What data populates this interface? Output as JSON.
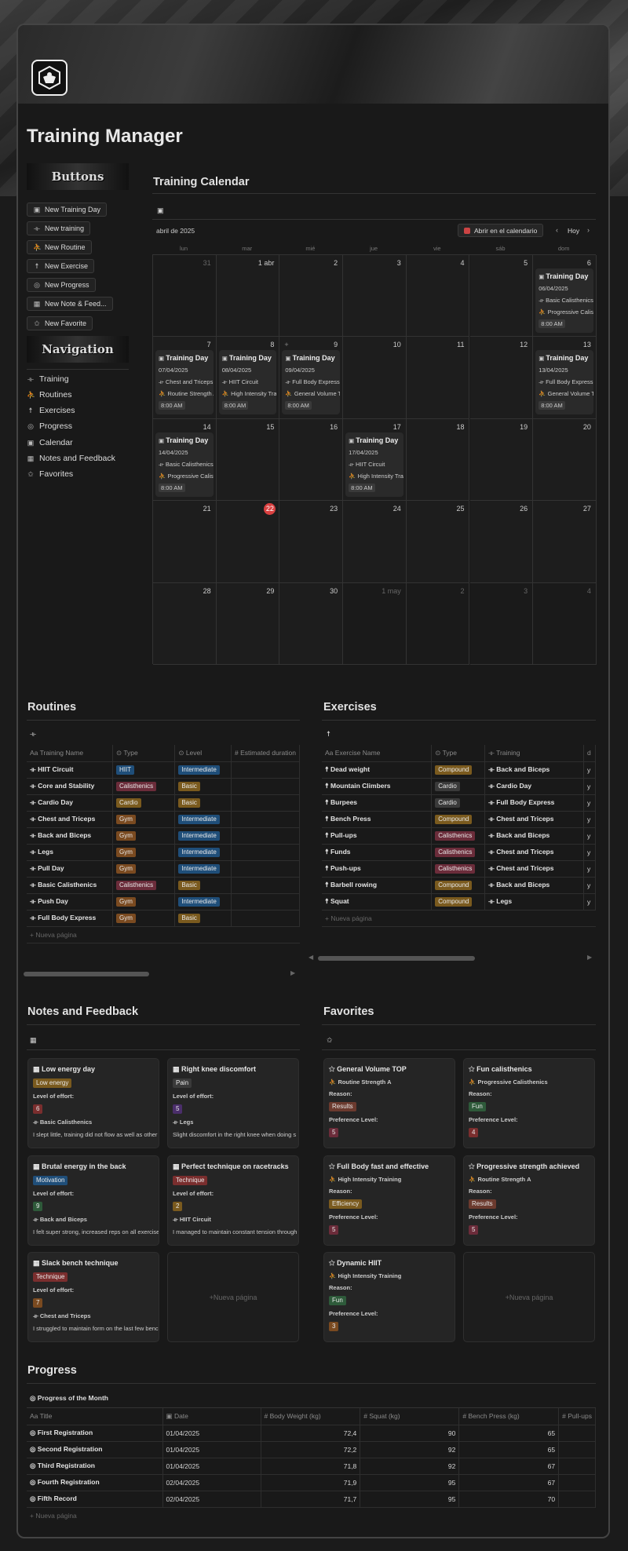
{
  "app": {
    "title": "Training Manager"
  },
  "buttons_banner": "Buttons",
  "nav_banner": "Navigation",
  "buttons": [
    {
      "label": "New Training Day",
      "icon": "calendar-icon"
    },
    {
      "label": "New training",
      "icon": "dumbbell-icon"
    },
    {
      "label": "New Routine",
      "icon": "runner-icon"
    },
    {
      "label": "New Exercise",
      "icon": "person-icon"
    },
    {
      "label": "New Progress",
      "icon": "target-icon"
    },
    {
      "label": "New Note & Feed...",
      "icon": "note-icon"
    },
    {
      "label": "New Favorite",
      "icon": "star-icon"
    }
  ],
  "nav": [
    {
      "label": "Training",
      "icon": "dumbbell-icon"
    },
    {
      "label": "Routines",
      "icon": "runner-icon"
    },
    {
      "label": "Exercises",
      "icon": "person-icon"
    },
    {
      "label": "Progress",
      "icon": "target-icon"
    },
    {
      "label": "Calendar",
      "icon": "calendar-icon"
    },
    {
      "label": "Notes and Feedback",
      "icon": "note-icon"
    },
    {
      "label": "Favorites",
      "icon": "star-icon"
    }
  ],
  "calendar": {
    "title": "Training Calendar",
    "month": "abril de 2025",
    "open_label": "Abrir en el calendario",
    "today_label": "Hoy",
    "weekdays": [
      "lun",
      "mar",
      "mié",
      "jue",
      "vie",
      "sáb",
      "dom"
    ],
    "days": [
      "31",
      "1 abr",
      "2",
      "3",
      "4",
      "5",
      "6",
      "7",
      "8",
      "9",
      "10",
      "11",
      "12",
      "13",
      "14",
      "15",
      "16",
      "17",
      "18",
      "19",
      "20",
      "21",
      "22",
      "23",
      "24",
      "25",
      "26",
      "27",
      "28",
      "29",
      "30",
      "1 may",
      "2",
      "3",
      "4"
    ],
    "events": [
      {
        "day_index": 6,
        "title": "Training Day",
        "date": "06/04/2025",
        "line1": "Basic Calisthenics",
        "line2": "Progressive Calisthenics",
        "time": "8:00 AM"
      },
      {
        "day_index": 7,
        "title": "Training Day",
        "date": "07/04/2025",
        "line1": "Chest and Triceps",
        "line2": "Routine Strength A",
        "time": "8:00 AM"
      },
      {
        "day_index": 8,
        "title": "Training Day",
        "date": "08/04/2025",
        "line1": "HIIT Circuit",
        "line2": "High Intensity Training",
        "time": "8:00 AM"
      },
      {
        "day_index": 9,
        "title": "Training Day",
        "date": "09/04/2025",
        "line1": "Full Body Express",
        "line2": "General Volume TOP",
        "time": "8:00 AM"
      },
      {
        "day_index": 13,
        "title": "Training Day",
        "date": "13/04/2025",
        "line1": "Full Body Express",
        "line2": "General Volume TOP",
        "time": "8:00 AM"
      },
      {
        "day_index": 14,
        "title": "Training Day",
        "date": "14/04/2025",
        "line1": "Basic Calisthenics",
        "line2": "Progressive Calisthenics",
        "time": "8:00 AM"
      },
      {
        "day_index": 17,
        "title": "Training Day",
        "date": "17/04/2025",
        "line1": "HIIT Circuit",
        "line2": "High Intensity Training",
        "time": "8:00 AM"
      }
    ]
  },
  "routines": {
    "title": "Routines",
    "columns": [
      "Training Name",
      "Type",
      "Level",
      "Estimated duration"
    ],
    "rows": [
      [
        "HIIT Circuit",
        "HIIT",
        "Intermediate"
      ],
      [
        "Core and Stability",
        "Calisthenics",
        "Basic"
      ],
      [
        "Cardio Day",
        "Cardio",
        "Basic"
      ],
      [
        "Chest and Triceps",
        "Gym",
        "Intermediate"
      ],
      [
        "Back and Biceps",
        "Gym",
        "Intermediate"
      ],
      [
        "Legs",
        "Gym",
        "Intermediate"
      ],
      [
        "Pull Day",
        "Gym",
        "Intermediate"
      ],
      [
        "Basic Calisthenics",
        "Calisthenics",
        "Basic"
      ],
      [
        "Push Day",
        "Gym",
        "Intermediate"
      ],
      [
        "Full Body Express",
        "Gym",
        "Basic"
      ]
    ],
    "new_page": "Nueva página"
  },
  "exercises": {
    "title": "Exercises",
    "columns": [
      "Exercise Name",
      "Type",
      "Training",
      "d"
    ],
    "rows": [
      [
        "Dead weight",
        "Compound",
        "Back and Biceps",
        "y"
      ],
      [
        "Mountain Climbers",
        "Cardio",
        "Cardio Day",
        "y"
      ],
      [
        "Burpees",
        "Cardio",
        "Full Body Express",
        "y"
      ],
      [
        "Bench Press",
        "Compound",
        "Chest and Triceps",
        "y"
      ],
      [
        "Pull-ups",
        "Calisthenics",
        "Back and Biceps",
        "y"
      ],
      [
        "Funds",
        "Calisthenics",
        "Chest and Triceps",
        "y"
      ],
      [
        "Push-ups",
        "Calisthenics",
        "Chest and Triceps",
        "y"
      ],
      [
        "Barbell rowing",
        "Compound",
        "Back and Biceps",
        "y"
      ],
      [
        "Squat",
        "Compound",
        "Legs",
        "y"
      ]
    ],
    "new_page": "Nueva página"
  },
  "tag_colors": {
    "HIIT": "#1f4e79",
    "Intermediate": "#1f4e79",
    "Calisthenics": "#6b2c3a",
    "Basic": "#7a5a1e",
    "Cardio": "#7a5a1e",
    "Gym": "#7a4a20",
    "Compound": "#7a5a1e",
    "Cardio_ex": "#3a3a3a"
  },
  "notes": {
    "title": "Notes and Feedback",
    "effort_label": "Level of effort:",
    "cards": [
      {
        "title": "Low energy day",
        "tag": "Low energy",
        "tag_color": "#7a5a1e",
        "effort": "6",
        "effort_color": "#7a2e2e",
        "routine": "Basic Calisthenics",
        "text": "I slept little, training did not flow as well as other"
      },
      {
        "title": "Right knee discomfort",
        "tag": "Pain",
        "tag_color": "#3a3a3a",
        "effort": "5",
        "effort_color": "#4a2e6a",
        "routine": "Legs",
        "text": "Slight discomfort in the right knee when doing s"
      },
      {
        "title": "Brutal energy in the back",
        "tag": "Motivation",
        "tag_color": "#1f4e79",
        "effort": "9",
        "effort_color": "#2e5a3a",
        "routine": "Back and Biceps",
        "text": "I felt super strong, increased reps on all exercises"
      },
      {
        "title": "Perfect technique on racetracks",
        "tag": "Technique",
        "tag_color": "#7a2e2e",
        "effort": "2",
        "effort_color": "#7a5a1e",
        "routine": "HIIT Circuit",
        "text": "I managed to maintain constant tension through"
      },
      {
        "title": "Slack bench technique",
        "tag": "Technique",
        "tag_color": "#7a2e2e",
        "effort": "7",
        "effort_color": "#7a4a20",
        "routine": "Chest and Triceps",
        "text": "I struggled to maintain form on the last few benc"
      }
    ],
    "new_page": "Nueva página"
  },
  "favorites": {
    "title": "Favorites",
    "reason_label": "Reason:",
    "pref_label": "Preference Level:",
    "cards": [
      {
        "title": "General Volume TOP",
        "routine": "Routine Strength A",
        "reason": "Results",
        "reason_color": "#6b3a2e",
        "pref": "5",
        "pref_color": "#6b2c3a"
      },
      {
        "title": "Fun calisthenics",
        "routine": "Progressive Calisthenics",
        "reason": "Fun",
        "reason_color": "#2e5a3a",
        "pref": "4",
        "pref_color": "#7a2e2e"
      },
      {
        "title": "Full Body fast and effective",
        "routine": "High Intensity Training",
        "reason": "Efficiency",
        "reason_color": "#7a5a1e",
        "pref": "5",
        "pref_color": "#6b2c3a"
      },
      {
        "title": "Progressive strength achieved",
        "routine": "Routine Strength A",
        "reason": "Results",
        "reason_color": "#6b3a2e",
        "pref": "5",
        "pref_color": "#6b2c3a"
      },
      {
        "title": "Dynamic HIIT",
        "routine": "High Intensity Training",
        "reason": "Fun",
        "reason_color": "#2e5a3a",
        "pref": "3",
        "pref_color": "#7a4a20"
      }
    ],
    "new_page": "Nueva página"
  },
  "progress": {
    "title": "Progress",
    "view": "Progress of the Month",
    "columns": [
      "Title",
      "Date",
      "Body Weight (kg)",
      "Squat (kg)",
      "Bench Press (kg)",
      "Pull-ups"
    ],
    "rows": [
      [
        "First Registration",
        "01/04/2025",
        "72,4",
        "90",
        "65"
      ],
      [
        "Second Registration",
        "01/04/2025",
        "72,2",
        "92",
        "65"
      ],
      [
        "Third Registration",
        "01/04/2025",
        "71,8",
        "92",
        "67"
      ],
      [
        "Fourth Registration",
        "02/04/2025",
        "71,9",
        "95",
        "67"
      ],
      [
        "Fifth Record",
        "02/04/2025",
        "71,7",
        "95",
        "70"
      ]
    ],
    "new_page": "Nueva página"
  }
}
